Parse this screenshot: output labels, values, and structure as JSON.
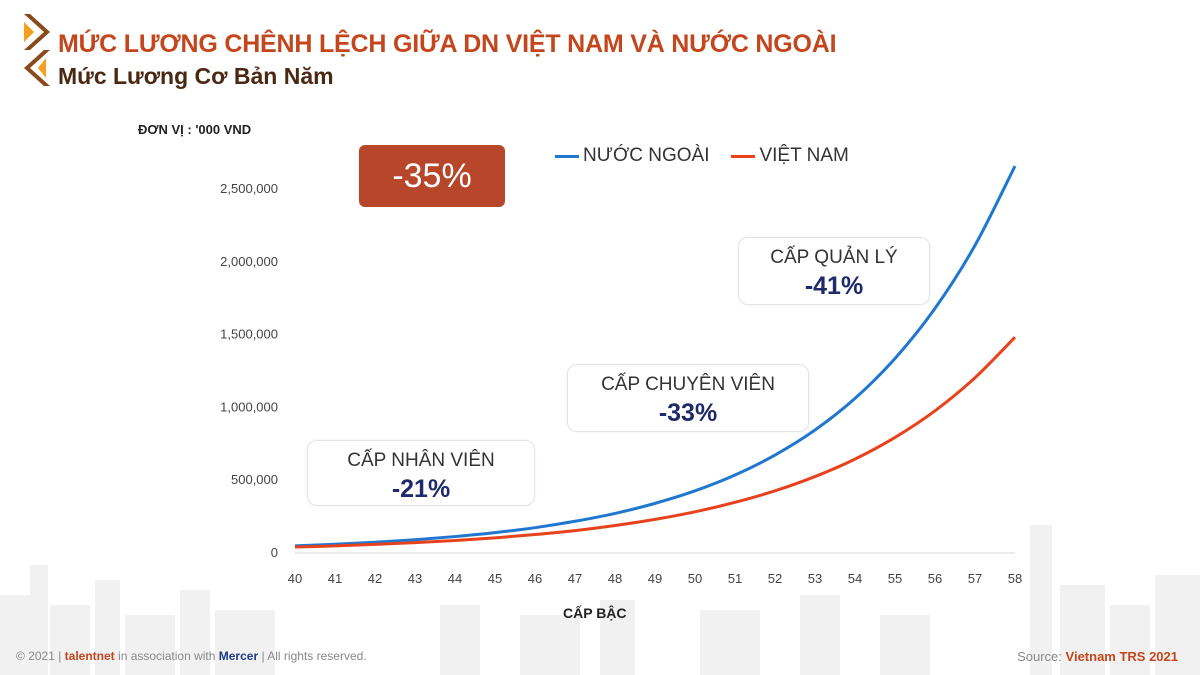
{
  "header": {
    "title": "MỨC LƯƠNG CHÊNH LỆCH GIỮA DN VIỆT NAM VÀ NƯỚC NGOÀI",
    "subtitle": "Mức Lương Cơ Bản Năm"
  },
  "badge": {
    "label": "-35%",
    "color": "#b8462a"
  },
  "annotations": [
    {
      "label": "CẤP NHÂN VIÊN",
      "value": "-21%"
    },
    {
      "label": "CẤP CHUYÊN VIÊN",
      "value": "-33%"
    },
    {
      "label": "CẤP QUẢN LÝ",
      "value": "-41%"
    }
  ],
  "annotation_value_color": "#1f2a6b",
  "chart_data": {
    "type": "line",
    "unit_label": "ĐƠN VỊ : '000 VND",
    "xlabel": "CẤP BẬC",
    "ylabel": "",
    "x": [
      40,
      41,
      42,
      43,
      44,
      45,
      46,
      47,
      48,
      49,
      50,
      51,
      52,
      53,
      54,
      55,
      56,
      57,
      58
    ],
    "xlim": [
      40,
      58
    ],
    "ylim": [
      0,
      2650000
    ],
    "yticks": [
      0,
      500000,
      1000000,
      1500000,
      2000000,
      2500000
    ],
    "ytick_labels": [
      "0",
      "500,000",
      "1,000,000",
      "1,500,000",
      "2,000,000",
      "2,500,000"
    ],
    "grid": false,
    "legend_position": "top",
    "series": [
      {
        "name": "NƯỚC NGOÀI",
        "color": "#1f77d0",
        "values": [
          42000,
          53000,
          67000,
          84000,
          106000,
          133000,
          167000,
          211000,
          265000,
          334000,
          420000,
          529000,
          666000,
          838000,
          1055000,
          1329000,
          1673000,
          2106000,
          2651000
        ]
      },
      {
        "name": "VIỆT NAM",
        "color": "#e8421c",
        "values": [
          34000,
          42000,
          52000,
          64000,
          79000,
          97000,
          120000,
          147000,
          182000,
          224000,
          276000,
          341000,
          420000,
          518000,
          638000,
          787000,
          970000,
          1197000,
          1475000
        ]
      }
    ]
  },
  "footer": {
    "copyright": "© 2021 |",
    "brand": "talentnet",
    "assoc": "in association with",
    "partner": "Mercer",
    "rights": "| All rights reserved.",
    "source_label": "Source:",
    "source_value": "Vietnam TRS 2021"
  }
}
